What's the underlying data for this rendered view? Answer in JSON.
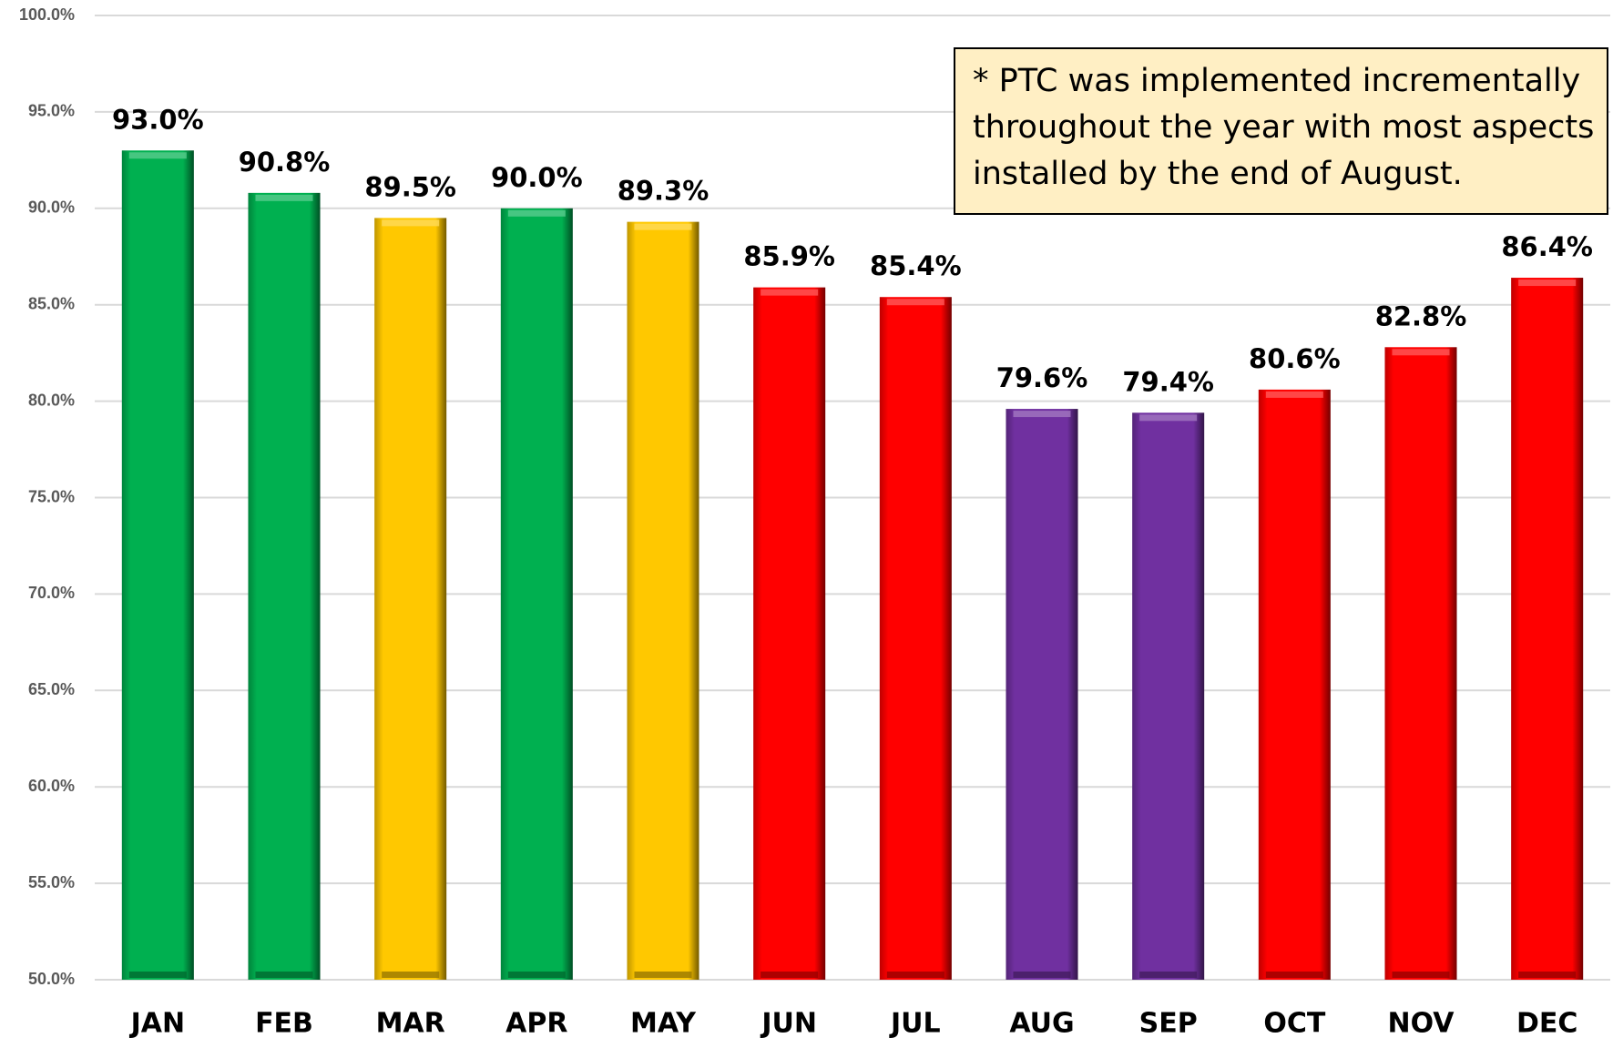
{
  "chart_data": {
    "type": "bar",
    "categories": [
      "JAN",
      "FEB",
      "MAR",
      "APR",
      "MAY",
      "JUN",
      "JUL",
      "AUG",
      "SEP",
      "OCT",
      "NOV",
      "DEC"
    ],
    "values": [
      93.0,
      90.8,
      89.5,
      90.0,
      89.3,
      85.9,
      85.4,
      79.6,
      79.4,
      80.6,
      82.8,
      86.4
    ],
    "value_labels": [
      "93.0%",
      "90.8%",
      "89.5%",
      "90.0%",
      "89.3%",
      "85.9%",
      "85.4%",
      "79.6%",
      "79.4%",
      "80.6%",
      "82.8%",
      "86.4%"
    ],
    "colors": [
      "#00b050",
      "#00b050",
      "#ffc800",
      "#00b050",
      "#ffc800",
      "#ff0000",
      "#ff0000",
      "#7030a0",
      "#7030a0",
      "#ff0000",
      "#ff0000",
      "#ff0000"
    ],
    "ylim": [
      50,
      100
    ],
    "yticks": [
      {
        "value": 50,
        "label": "50.0%"
      },
      {
        "value": 55,
        "label": "55.0%"
      },
      {
        "value": 60,
        "label": "60.0%"
      },
      {
        "value": 65,
        "label": "65.0%"
      },
      {
        "value": 70,
        "label": "70.0%"
      },
      {
        "value": 75,
        "label": "75.0%"
      },
      {
        "value": 80,
        "label": "80.0%"
      },
      {
        "value": 85,
        "label": "85.0%"
      },
      {
        "value": 90,
        "label": "90.0%"
      },
      {
        "value": 95,
        "label": "95.0%"
      },
      {
        "value": 100,
        "label": "100.0%"
      }
    ],
    "grid": true,
    "annotation": [
      "* PTC was implemented incrementally",
      "throughout the year with most aspects",
      "installed by the end of August."
    ]
  }
}
